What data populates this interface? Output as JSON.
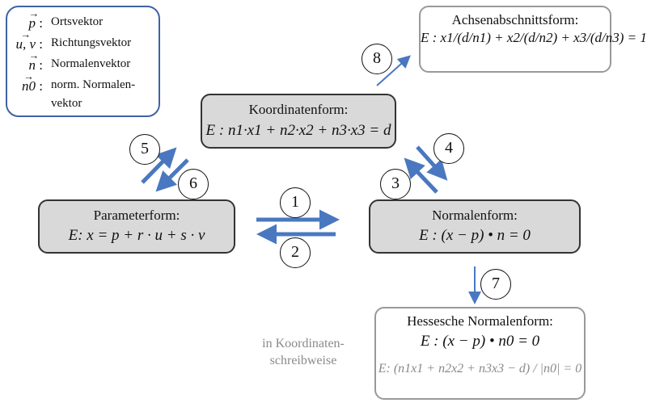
{
  "legend": {
    "items": [
      {
        "symbol": "p",
        "sym_suffix": " :",
        "label": "Ortsvektor"
      },
      {
        "symbol": "u, v",
        "sym_suffix": " :",
        "label": "Richtungsvektor"
      },
      {
        "symbol": "n",
        "sym_suffix": " :",
        "label": "Normalenvektor"
      },
      {
        "symbol": "n0",
        "sym_suffix": " :",
        "label": "norm. Normalen-",
        "label2": "vektor"
      }
    ]
  },
  "forms": {
    "koordinatenform": {
      "title": "Koordinatenform:",
      "formula": "E : n1·x1 + n2·x2 + n3·x3 = d"
    },
    "parameterform": {
      "title": "Parameterform:",
      "formula": "E: x = p + r · u + s · v"
    },
    "normalenform": {
      "title": "Normalenform:",
      "formula": "E : (x − p) • n = 0"
    },
    "achsenabschnittsform": {
      "title": "Achsenabschnittsform:",
      "formula": "E : x1/(d/n1) + x2/(d/n2) + x3/(d/n3) = 1"
    },
    "hessesche": {
      "title": "Hessesche Normalenform:",
      "formula": "E : (x − p) • n0 = 0",
      "formula2": "E: (n1x1 + n2x2 + n3x3 − d) / |n0| = 0"
    }
  },
  "note": {
    "line1": "in Koordinaten-",
    "line2": "schreibweise"
  },
  "steps": [
    "1",
    "2",
    "3",
    "4",
    "5",
    "6",
    "7",
    "8"
  ],
  "colors": {
    "arrow": "#4a78c0",
    "legend_border": "#3f62a6",
    "box_fill": "#d9d9d9",
    "box_border": "#333333",
    "light_border": "#999999"
  }
}
